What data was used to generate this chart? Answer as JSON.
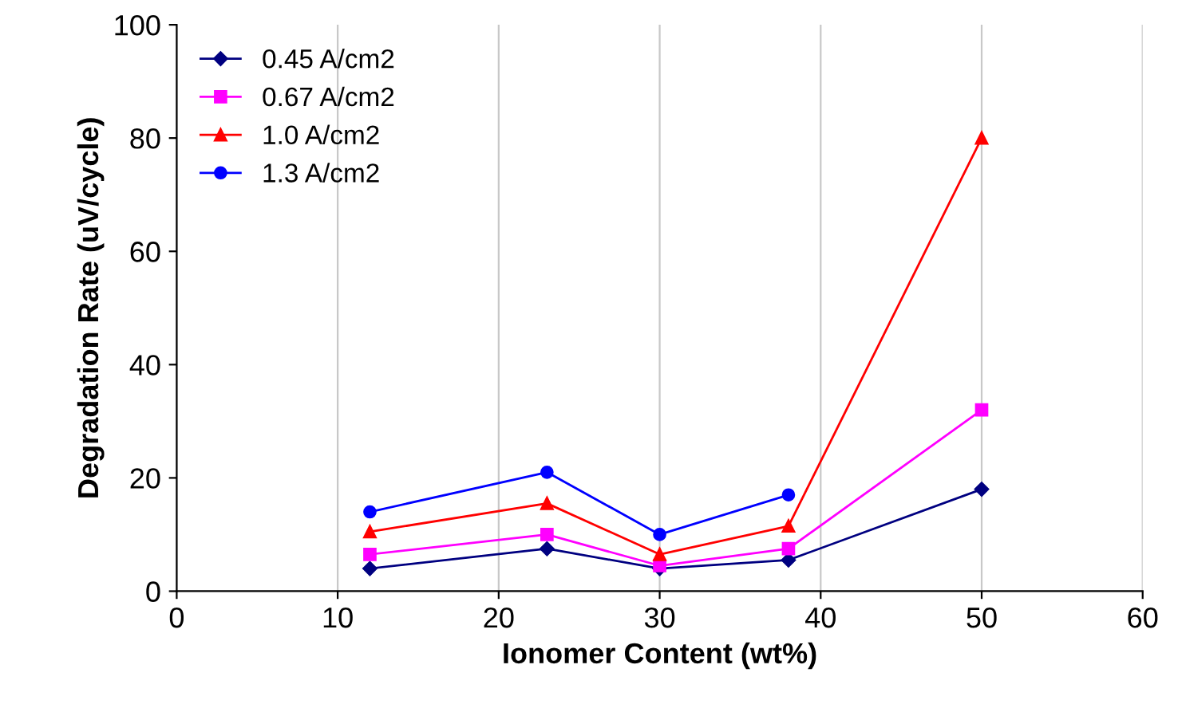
{
  "chart_data": {
    "type": "line",
    "xlabel": "Ionomer Content (wt%)",
    "ylabel": "Degradation Rate (uV/cycle)",
    "x": [
      12,
      23,
      30,
      38,
      50
    ],
    "series": [
      {
        "name": "0.45 A/cm2",
        "color": "#000080",
        "marker": "diamond",
        "values": [
          4,
          7.5,
          4,
          5.5,
          18
        ]
      },
      {
        "name": "0.67 A/cm2",
        "color": "#ff00ff",
        "marker": "square",
        "values": [
          6.5,
          10,
          4.5,
          7.5,
          32
        ]
      },
      {
        "name": "1.0 A/cm2",
        "color": "#ff0000",
        "marker": "triangle",
        "values": [
          10.5,
          15.5,
          6.5,
          11.5,
          80
        ]
      },
      {
        "name": "1.3 A/cm2",
        "color": "#0000ff",
        "marker": "circle",
        "values": [
          14,
          21,
          10,
          17,
          null
        ]
      }
    ],
    "xlim": [
      0,
      60
    ],
    "xticks": [
      0,
      10,
      20,
      30,
      40,
      50,
      60
    ],
    "ylim": [
      0,
      100
    ],
    "yticks": [
      0,
      20,
      40,
      60,
      80,
      100
    ],
    "grid": "x",
    "legend": "top left",
    "line_style": "solid"
  }
}
